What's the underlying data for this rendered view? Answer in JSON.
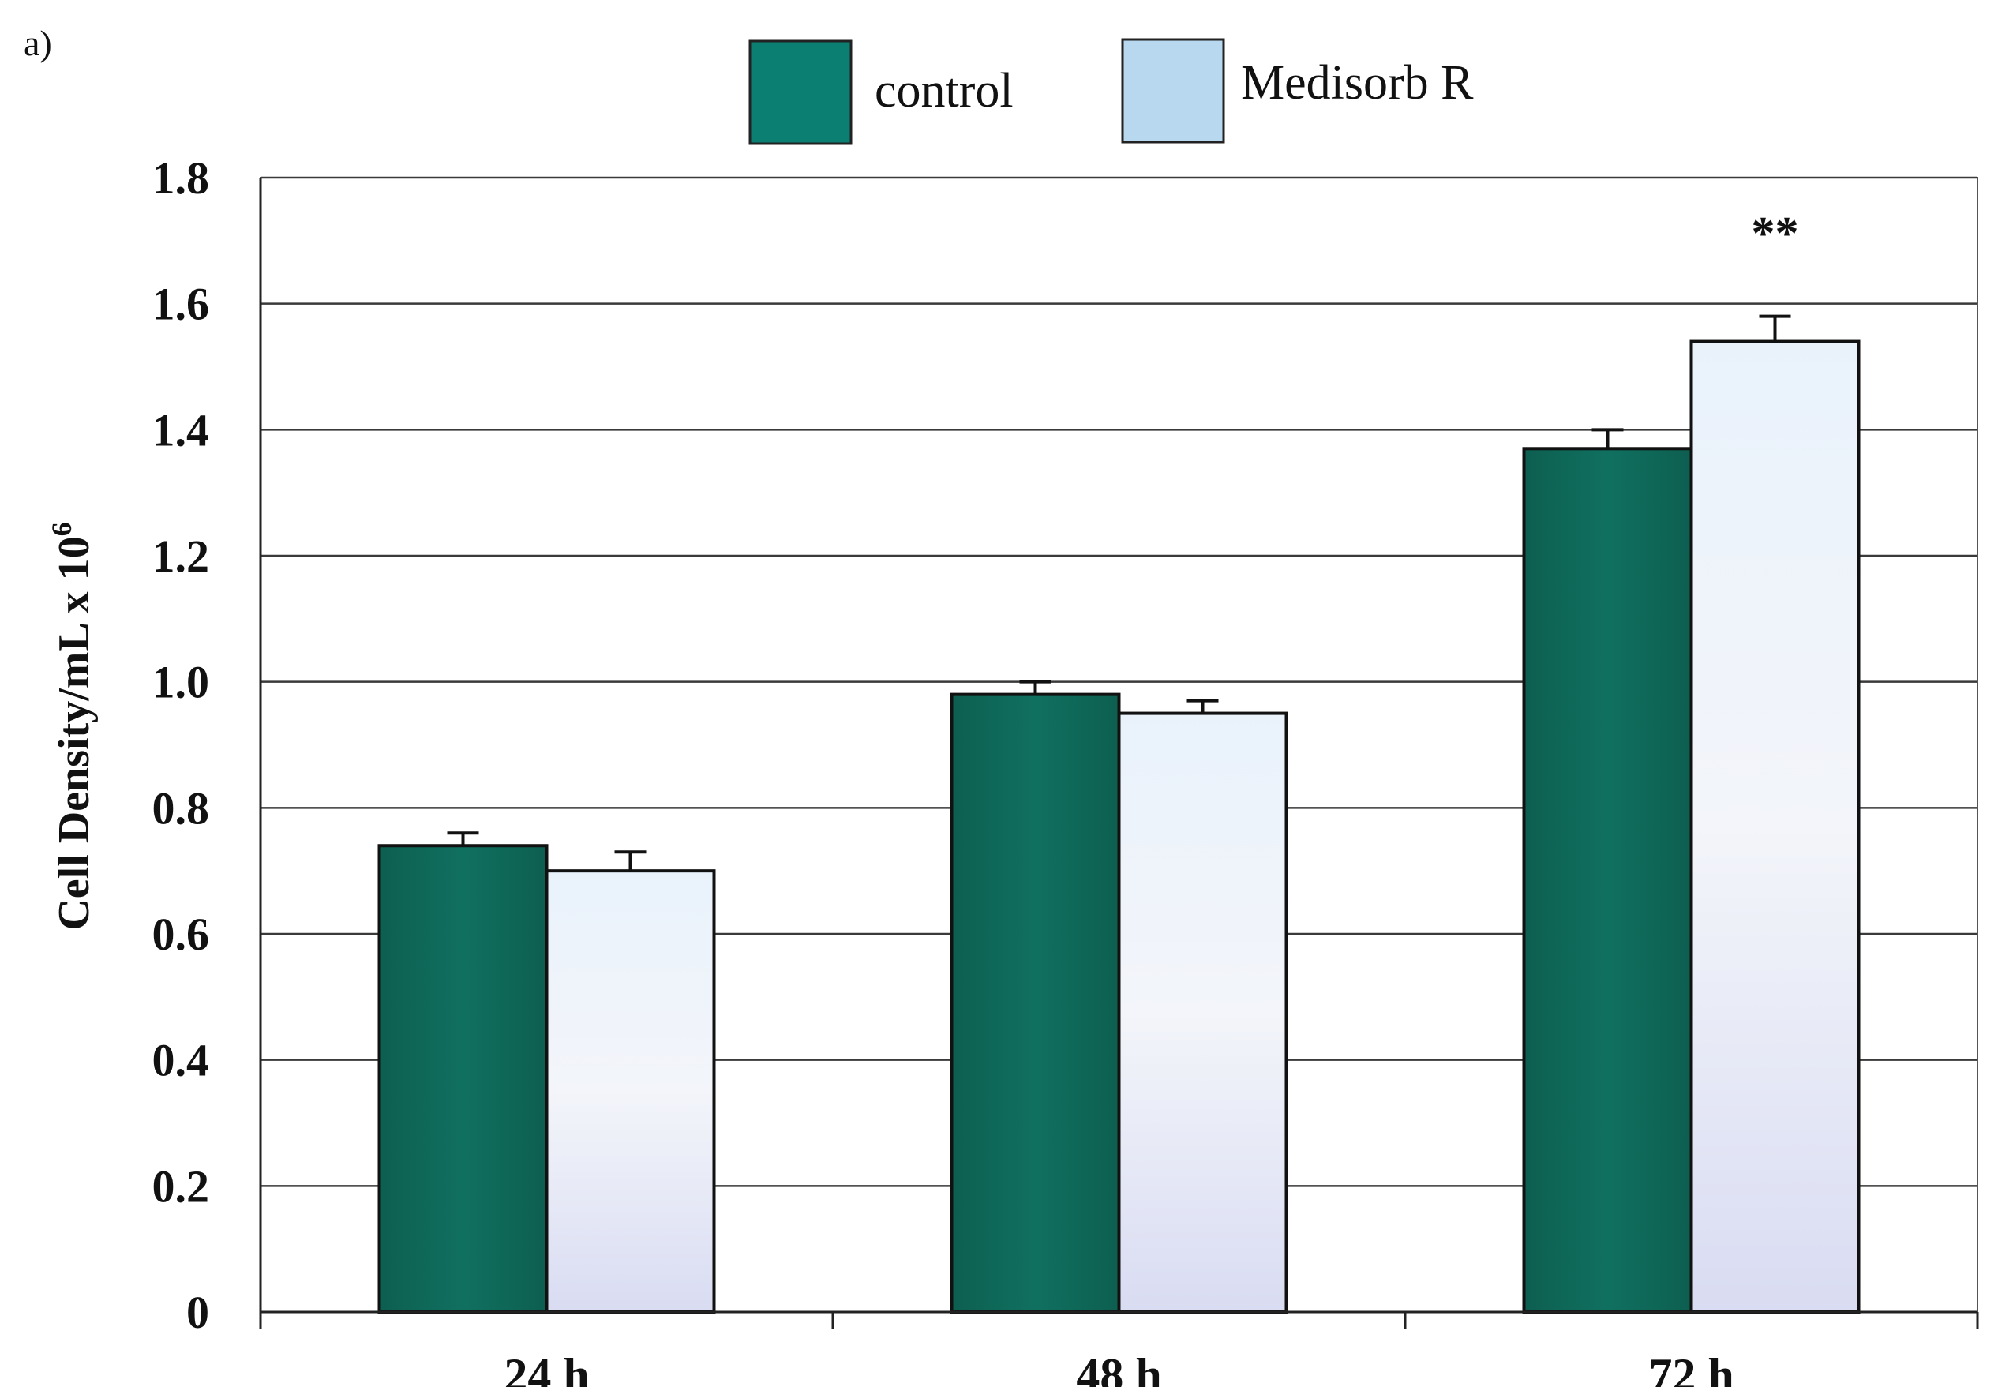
{
  "panel_label": "a)",
  "colors": {
    "control": "#0f6b5c",
    "control_legend": "#0b7f72",
    "medisorb": "#dfe6f3",
    "medisorb_legend": "#b7d8ef",
    "grid": "#3a3a3a",
    "axis": "#222222",
    "text": "#111111"
  },
  "chart_data": {
    "type": "bar",
    "categories": [
      "24 h",
      "48 h",
      "72 h"
    ],
    "series": [
      {
        "name": "control",
        "values": [
          0.74,
          0.98,
          1.37
        ],
        "errors": [
          0.02,
          0.02,
          0.03
        ]
      },
      {
        "name": "Medisorb R",
        "values": [
          0.7,
          0.95,
          1.54
        ],
        "errors": [
          0.03,
          0.02,
          0.04
        ]
      }
    ],
    "ylabel": "Cell Density/mL x 10",
    "ylabel_superscript": "6",
    "xlabel": "",
    "ylim": [
      0,
      1.8
    ],
    "yticks": [
      "0",
      "0.2",
      "0.4",
      "0.6",
      "0.8",
      "1.0",
      "1.2",
      "1.4",
      "1.6",
      "1.8"
    ],
    "ytick_values": [
      0,
      0.2,
      0.4,
      0.6,
      0.8,
      1.0,
      1.2,
      1.4,
      1.6,
      1.8
    ],
    "grid": true,
    "legend_position": "top-center",
    "annotations": [
      {
        "text": "**",
        "category": "72 h",
        "series": "Medisorb R"
      }
    ]
  }
}
